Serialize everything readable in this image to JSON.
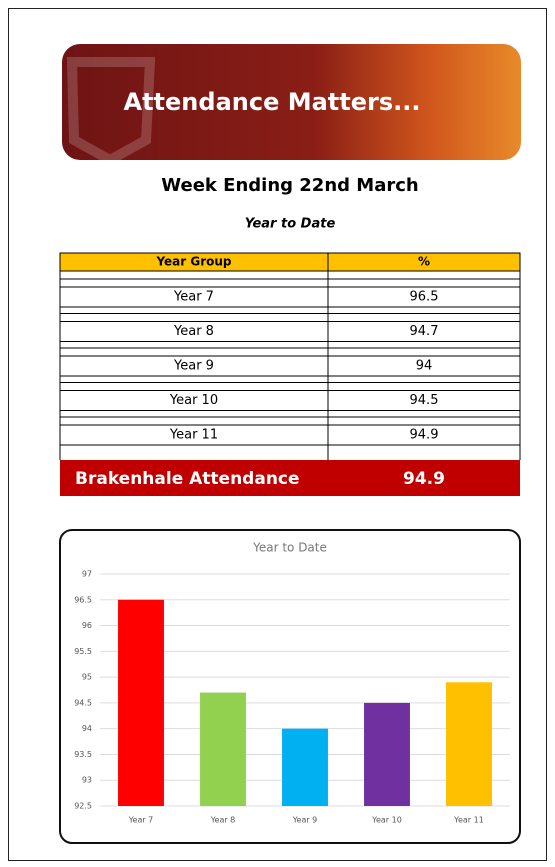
{
  "banner": {
    "title": "Attendance Matters..."
  },
  "heading": "Week Ending 22nd March",
  "subheading": "Year to Date",
  "table": {
    "header": [
      "Year Group",
      "%"
    ],
    "rows": [
      [
        "Year 7",
        96.5
      ],
      [
        "Year 8",
        94.7
      ],
      [
        "Year 9",
        94
      ],
      [
        "Year 10",
        94.5
      ],
      [
        "Year 11",
        94.9
      ]
    ]
  },
  "total": {
    "label": "Brakenhale Attendance",
    "value": 94.9
  },
  "chart_data": {
    "type": "bar",
    "title": "Year to Date",
    "categories": [
      "Year 7",
      "Year 8",
      "Year 9",
      "Year 10",
      "Year 11"
    ],
    "values": [
      96.5,
      94.7,
      94,
      94.5,
      94.9
    ],
    "colors": [
      "#ff0000",
      "#92d050",
      "#00b0f0",
      "#7030a0",
      "#ffc000"
    ],
    "ylim": [
      92.5,
      97
    ],
    "yticks": [
      92.5,
      93,
      93.5,
      94,
      94.5,
      95,
      95.5,
      96,
      96.5,
      97
    ],
    "grid": true
  }
}
